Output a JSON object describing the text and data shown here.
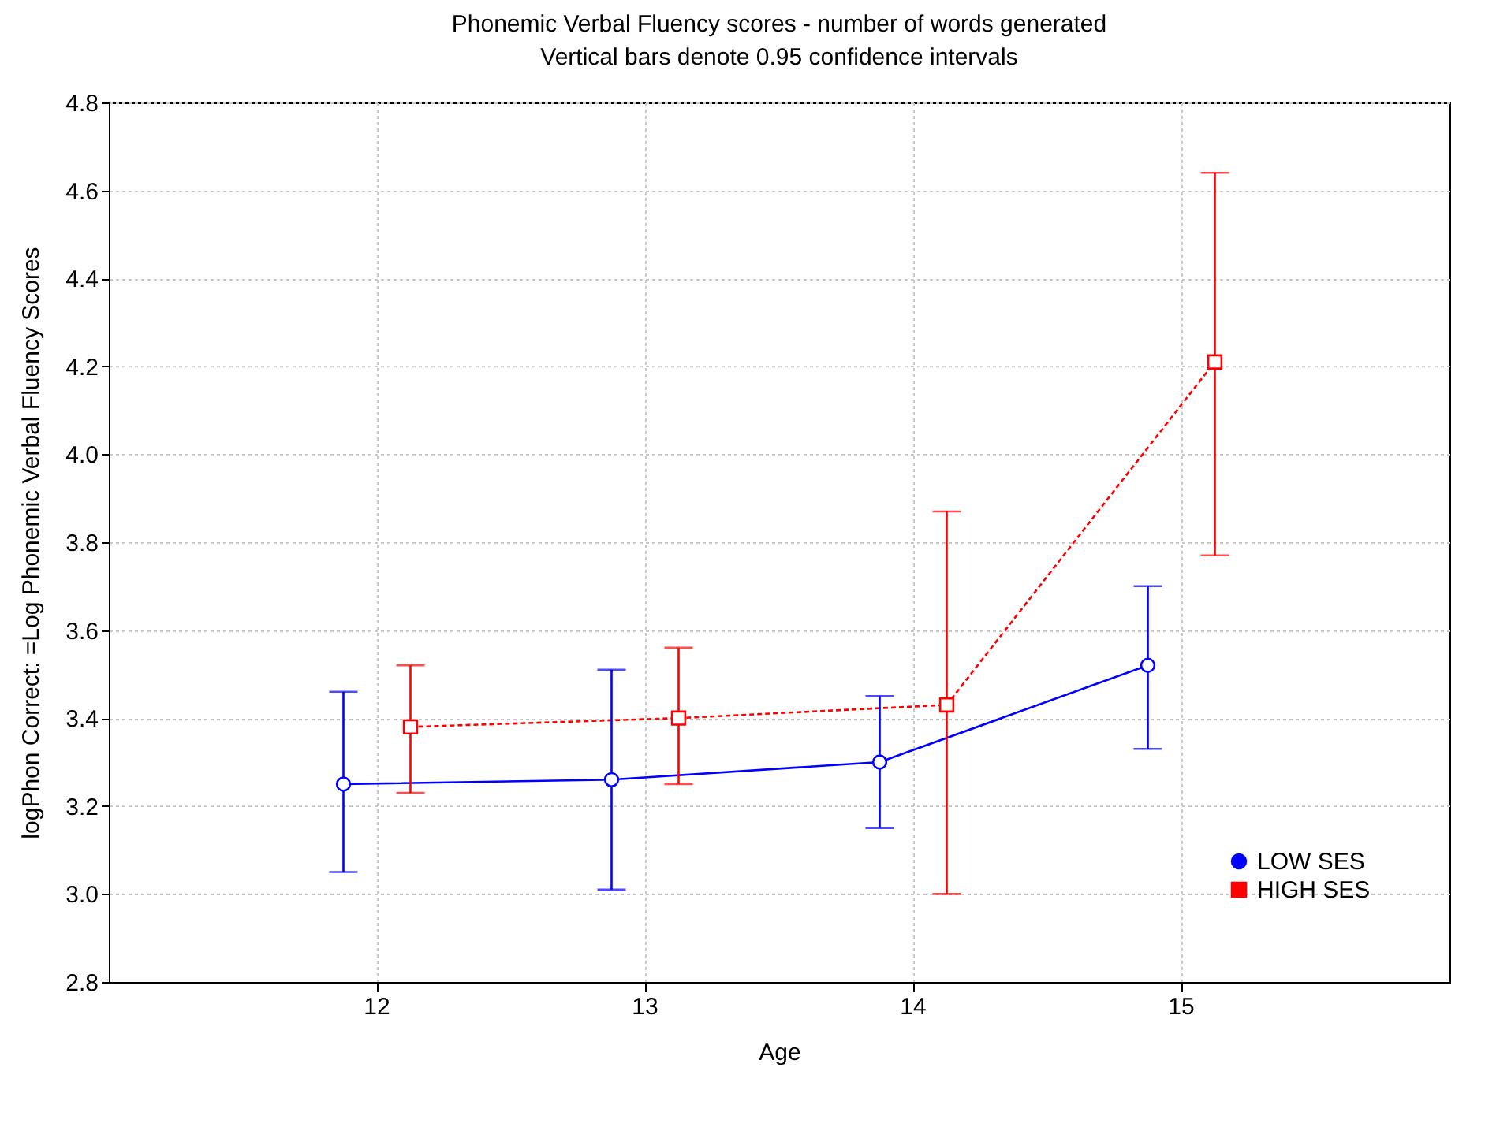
{
  "chart_data": {
    "type": "line",
    "title": "Phonemic Verbal Fluency scores - number of words generated",
    "subtitle": "Vertical bars denote 0.95 confidence intervals",
    "xlabel": "Age",
    "ylabel": "logPhon Correct: =Log Phonemic Verbal Fluency Scores",
    "categories": [
      "12",
      "13",
      "14",
      "15"
    ],
    "series": [
      {
        "name": "LOW SES",
        "color": "#0000ff",
        "marker": "circle",
        "line_style": "solid",
        "values": [
          3.25,
          3.26,
          3.3,
          3.52
        ],
        "errors": [
          [
            3.05,
            3.46
          ],
          [
            3.01,
            3.51
          ],
          [
            3.15,
            3.45
          ],
          [
            3.33,
            3.7
          ]
        ]
      },
      {
        "name": "HIGH SES",
        "color": "#ff0000",
        "marker": "square",
        "line_style": "dashed",
        "values": [
          3.38,
          3.4,
          3.43,
          4.21
        ],
        "errors": [
          [
            3.23,
            3.52
          ],
          [
            3.25,
            3.56
          ],
          [
            3.0,
            3.87
          ],
          [
            3.77,
            4.64
          ]
        ]
      }
    ],
    "ylim": [
      2.8,
      4.8
    ],
    "yticks": [
      2.8,
      {
        "value": 3,
        "label": "3.0"
      },
      3.2,
      3.4,
      3.6,
      3.8,
      {
        "value": 4,
        "label": "4.0"
      },
      4.2,
      4.4,
      4.6,
      4.8
    ],
    "grid": true,
    "legend": "bottom right"
  }
}
